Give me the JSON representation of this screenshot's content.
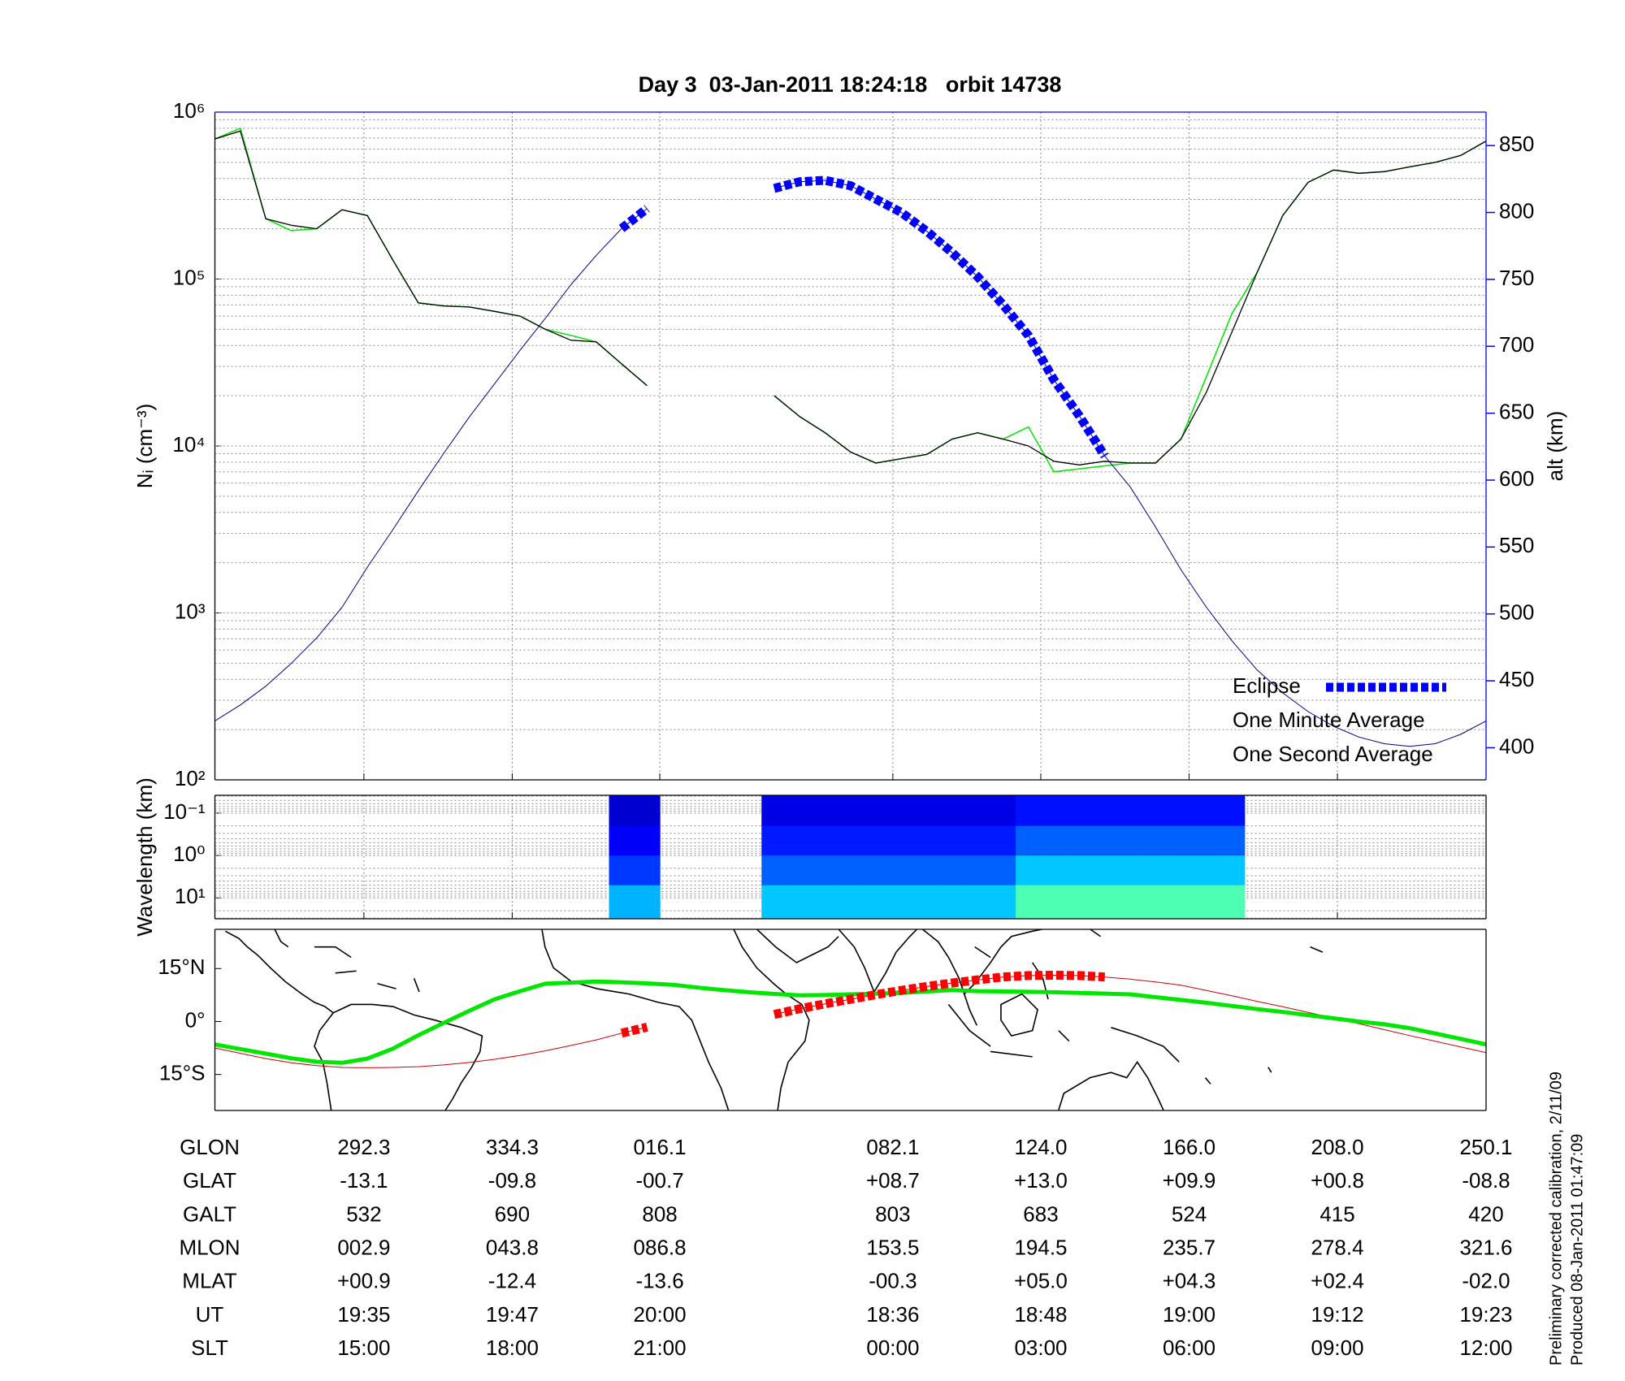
{
  "chart_data": [
    {
      "type": "line",
      "title": "Day 3  03-Jan-2011 18:24:18   orbit 14738",
      "ylabel": "Nᵢ (cm⁻³)",
      "y2label": "alt (km)",
      "log_y": true,
      "grid": true,
      "minor_grid": true,
      "legend": "lower right",
      "y2color": "#0000ff",
      "x": [
        250.1,
        257.3,
        264.5,
        271.7,
        278.9,
        286.1,
        293.3,
        300.5,
        307.7,
        314.9,
        322.1,
        329.3,
        336.5,
        343.7,
        350.9,
        358.1,
        365.3,
        372.5,
        379.7,
        386.9,
        394.1,
        401.3,
        408.5,
        415.7,
        422.9,
        430.1,
        437.3,
        444.5,
        451.7,
        458.9,
        466.1,
        473.3,
        480.5,
        487.7,
        494.9,
        502.1,
        509.3,
        516.5,
        523.7,
        530.9,
        538.1,
        545.3,
        552.5,
        559.7,
        566.9,
        574.1,
        581.3,
        588.5,
        595.7,
        602.9,
        610.1
      ],
      "xlim": [
        250.1,
        610.1
      ],
      "xticks": [
        292.3,
        334.3,
        376.1,
        442.1,
        484,
        526,
        568,
        610.1
      ],
      "ylim": [
        100,
        1000000
      ],
      "yticks": [
        {
          "value": 100,
          "label": "10²"
        },
        {
          "value": 1000,
          "label": "10³"
        },
        {
          "value": 10000,
          "label": "10⁴"
        },
        {
          "value": 100000,
          "label": "10⁵"
        },
        {
          "value": 1000000,
          "label": "10⁶"
        }
      ],
      "y2lim": [
        376,
        875
      ],
      "y2ticks": [
        400,
        450,
        500,
        550,
        600,
        650,
        700,
        750,
        800,
        850
      ],
      "series": [
        {
          "name": "One Second Average",
          "color": "#00e600",
          "width": 1.5,
          "values": [
            690000,
            800000,
            230000,
            195000,
            200000,
            260000,
            240000,
            130000,
            72000,
            69000,
            68000,
            64000,
            60000,
            50000,
            46000,
            42000,
            31000,
            23000,
            null,
            null,
            null,
            null,
            20000,
            15000,
            12000,
            9200,
            7900,
            8400,
            8900,
            11000,
            12000,
            11000,
            13000,
            7000,
            7300,
            7600,
            7900,
            7900,
            11000,
            26000,
            62000,
            110000,
            240000,
            380000,
            450000,
            430000,
            440000,
            470000,
            500000,
            550000,
            670000
          ]
        },
        {
          "name": "One Minute Average",
          "color": "#000000",
          "width": 1.3,
          "values": [
            690000,
            770000,
            230000,
            210000,
            200000,
            260000,
            240000,
            130000,
            72000,
            69000,
            68000,
            64000,
            60000,
            50000,
            43000,
            42000,
            31000,
            23000,
            null,
            null,
            null,
            null,
            20000,
            15000,
            12000,
            9200,
            7900,
            8400,
            8900,
            11000,
            12000,
            11000,
            10000,
            8100,
            7700,
            8100,
            7900,
            7900,
            11000,
            21000,
            48000,
            110000,
            240000,
            380000,
            450000,
            430000,
            440000,
            470000,
            500000,
            550000,
            670000
          ]
        },
        {
          "color": "#00008b",
          "width": 1,
          "axis": "y2",
          "values": [
            420,
            432,
            446,
            463,
            482,
            505,
            535,
            563,
            592,
            620,
            647,
            672,
            697,
            721,
            746,
            768,
            788,
            803,
            null,
            null,
            null,
            null,
            818,
            823,
            824,
            820,
            810,
            800,
            786,
            770,
            752,
            731,
            708,
            675,
            648,
            618,
            595,
            565,
            533,
            505,
            480,
            458,
            441,
            427,
            416,
            408,
            403,
            401,
            403,
            410,
            420
          ]
        },
        {
          "name": "Eclipse",
          "color": "#0000ff",
          "width": 11,
          "style": "dashed",
          "axis": "y2",
          "values": [
            null,
            null,
            null,
            null,
            null,
            null,
            null,
            null,
            null,
            null,
            null,
            null,
            null,
            null,
            null,
            null,
            788,
            803,
            null,
            null,
            null,
            null,
            818,
            823,
            824,
            820,
            810,
            800,
            786,
            770,
            752,
            731,
            708,
            675,
            648,
            618,
            null,
            null,
            null,
            null,
            null,
            null,
            null,
            null,
            null,
            null,
            null,
            null,
            null,
            null,
            null
          ]
        }
      ]
    },
    {
      "type": "heatmap",
      "ylabel": "Wavelength (km)",
      "log_y": true,
      "y_inverted": true,
      "grid": true,
      "minor_grid": true,
      "colormap": "jet",
      "zlim": [
        0,
        1
      ],
      "x": [
        250.1,
        257.3,
        264.5,
        271.7,
        278.9,
        286.1,
        293.3,
        300.5,
        307.7,
        314.9,
        322.1,
        329.3,
        336.5,
        343.7,
        350.9,
        358.1,
        365.3,
        372.5,
        379.7,
        386.9,
        394.1,
        401.3,
        408.5,
        415.7,
        422.9,
        430.1,
        437.3,
        444.5,
        451.7,
        458.9,
        466.1,
        473.3,
        480.5,
        487.7,
        494.9,
        502.1,
        509.3,
        516.5,
        523.7,
        530.9,
        538.1,
        545.3,
        552.5,
        559.7,
        566.9,
        574.1,
        581.3,
        588.5,
        595.7,
        602.9,
        610.1
      ],
      "xlim": [
        250.1,
        610.1
      ],
      "xticks": [
        292.3,
        334.3,
        376.1,
        442.1,
        484,
        526,
        568,
        610.1
      ],
      "ylim": [
        0.038,
        31
      ],
      "yticks": [
        {
          "value": 0.1,
          "label": "10⁻¹"
        },
        {
          "value": 1,
          "label": "10⁰"
        },
        {
          "value": 10,
          "label": "10¹"
        }
      ],
      "y_edges": [
        0.038,
        0.2,
        1,
        5,
        31
      ],
      "values": [
        [
          null,
          null,
          null,
          null,
          null,
          null,
          null,
          null,
          null,
          null,
          null,
          null,
          null,
          null,
          null,
          null,
          0.08,
          0.08,
          null,
          null,
          null,
          null,
          0.1,
          0.1,
          0.1,
          0.1,
          0.1,
          0.1,
          0.1,
          0.1,
          0.1,
          0.1,
          0.14,
          0.14,
          0.14,
          0.14,
          0.14,
          0.14,
          0.14,
          0.14,
          0.14,
          null,
          null,
          null,
          null,
          null,
          null,
          null,
          null,
          null,
          null
        ],
        [
          null,
          null,
          null,
          null,
          null,
          null,
          null,
          null,
          null,
          null,
          null,
          null,
          null,
          null,
          null,
          null,
          0.12,
          0.12,
          null,
          null,
          null,
          null,
          0.15,
          0.15,
          0.15,
          0.15,
          0.15,
          0.15,
          0.15,
          0.15,
          0.15,
          0.15,
          0.22,
          0.22,
          0.22,
          0.22,
          0.22,
          0.22,
          0.22,
          0.22,
          0.22,
          null,
          null,
          null,
          null,
          null,
          null,
          null,
          null,
          null,
          null
        ],
        [
          null,
          null,
          null,
          null,
          null,
          null,
          null,
          null,
          null,
          null,
          null,
          null,
          null,
          null,
          null,
          null,
          0.18,
          0.18,
          null,
          null,
          null,
          null,
          0.22,
          0.22,
          0.22,
          0.22,
          0.22,
          0.22,
          0.22,
          0.22,
          0.22,
          0.22,
          0.32,
          0.32,
          0.32,
          0.32,
          0.32,
          0.32,
          0.32,
          0.32,
          0.32,
          null,
          null,
          null,
          null,
          null,
          null,
          null,
          null,
          null,
          null
        ],
        [
          null,
          null,
          null,
          null,
          null,
          null,
          null,
          null,
          null,
          null,
          null,
          null,
          null,
          null,
          null,
          null,
          0.3,
          0.3,
          null,
          null,
          null,
          null,
          0.32,
          0.32,
          0.32,
          0.32,
          0.32,
          0.32,
          0.32,
          0.32,
          0.32,
          0.32,
          0.45,
          0.45,
          0.45,
          0.45,
          0.45,
          0.45,
          0.45,
          0.45,
          0.45,
          null,
          null,
          null,
          null,
          null,
          null,
          null,
          null,
          null,
          null
        ]
      ]
    },
    {
      "type": "map",
      "x": [
        250.1,
        257.3,
        264.5,
        271.7,
        278.9,
        286.1,
        293.3,
        300.5,
        307.7,
        314.9,
        322.1,
        329.3,
        336.5,
        343.7,
        350.9,
        358.1,
        365.3,
        372.5,
        379.7,
        386.9,
        394.1,
        401.3,
        408.5,
        415.7,
        422.9,
        430.1,
        437.3,
        444.5,
        451.7,
        458.9,
        466.1,
        473.3,
        480.5,
        487.7,
        494.9,
        502.1,
        509.3,
        516.5,
        523.7,
        530.9,
        538.1,
        545.3,
        552.5,
        559.7,
        566.9,
        574.1,
        581.3,
        588.5,
        595.7,
        602.9,
        610.1
      ],
      "xlim": [
        250.1,
        610.1
      ],
      "ylim": [
        -25.2,
        26.1
      ],
      "yticks": [
        {
          "value": 15,
          "label": "15°N"
        },
        {
          "value": 0,
          "label": "0°"
        },
        {
          "value": -15,
          "label": "15°S"
        }
      ],
      "series": [
        {
          "color": "#cc0000",
          "width": 1,
          "values": [
            -7.5,
            -9,
            -10.5,
            -11.7,
            -12.5,
            -13,
            -13.1,
            -13,
            -12.8,
            -12.3,
            -11.6,
            -10.7,
            -9.6,
            -8.3,
            -6.8,
            -5.2,
            -3.3,
            -1.6,
            null,
            null,
            null,
            null,
            2,
            3.6,
            5,
            6.3,
            7.6,
            8.8,
            9.9,
            10.9,
            11.8,
            12.6,
            13,
            13.1,
            13,
            12.6,
            12,
            11.2,
            10.3,
            8.8,
            7.3,
            5.7,
            4.2,
            2.6,
            1,
            -0.6,
            -2.3,
            -4,
            -5.6,
            -7.2,
            -8.8
          ]
        },
        {
          "color": "#00e600",
          "width": 5,
          "values": [
            -6.5,
            -7.8,
            -9.1,
            -10.4,
            -11.4,
            -11.7,
            -10.5,
            -7.7,
            -3.9,
            -0.4,
            3,
            6.3,
            8.6,
            10.7,
            11,
            11.3,
            11.1,
            10.8,
            10.4,
            9.6,
            8.9,
            8.3,
            7.8,
            7.4,
            7.5,
            7.7,
            7.9,
            8.1,
            8.5,
            8.9,
            8.6,
            8.5,
            8.4,
            8.3,
            8.1,
            7.9,
            7.7,
            6.9,
            6.1,
            5.3,
            4.4,
            3.5,
            2.7,
            1.8,
            0.9,
            0,
            -0.8,
            -1.9,
            -3.4,
            -4.9,
            -6.5
          ]
        },
        {
          "color": "#ff0000",
          "width": 11,
          "style": "dashed",
          "values": [
            null,
            null,
            null,
            null,
            null,
            null,
            null,
            null,
            null,
            null,
            null,
            null,
            null,
            null,
            null,
            null,
            -3.3,
            -1.6,
            null,
            null,
            null,
            null,
            2,
            3.6,
            5,
            6.3,
            7.6,
            8.8,
            9.9,
            10.9,
            11.8,
            12.6,
            13,
            13.1,
            13,
            12.6,
            null,
            null,
            null,
            null,
            null,
            null,
            null,
            null,
            null,
            null,
            null,
            null,
            null,
            null,
            null
          ]
        }
      ]
    }
  ],
  "table": {
    "rows": [
      {
        "label": "GLON",
        "values": [
          "292.3",
          "334.3",
          "016.1",
          "082.1",
          "124.0",
          "166.0",
          "208.0",
          "250.1"
        ]
      },
      {
        "label": "GLAT",
        "values": [
          "-13.1",
          "-09.8",
          "-00.7",
          "+08.7",
          "+13.0",
          "+09.9",
          "+00.8",
          "-08.8"
        ]
      },
      {
        "label": "GALT",
        "values": [
          "532",
          "690",
          "808",
          "803",
          "683",
          "524",
          "415",
          "420"
        ]
      },
      {
        "label": "MLON",
        "values": [
          "002.9",
          "043.8",
          "086.8",
          "153.5",
          "194.5",
          "235.7",
          "278.4",
          "321.6"
        ]
      },
      {
        "label": "MLAT",
        "values": [
          "+00.9",
          "-12.4",
          "-13.6",
          "-00.3",
          "+05.0",
          "+04.3",
          "+02.4",
          "-02.0"
        ]
      },
      {
        "label": "UT",
        "values": [
          "19:35",
          "19:47",
          "20:00",
          "18:36",
          "18:48",
          "19:00",
          "19:12",
          "19:23"
        ]
      },
      {
        "label": "SLT",
        "values": [
          "15:00",
          "18:00",
          "21:00",
          "00:00",
          "03:00",
          "06:00",
          "09:00",
          "12:00"
        ]
      }
    ]
  },
  "footer": [
    "Preliminary corrected calibration, 2/11/09",
    "Produced 08-Jan-2011 01:47:09"
  ]
}
